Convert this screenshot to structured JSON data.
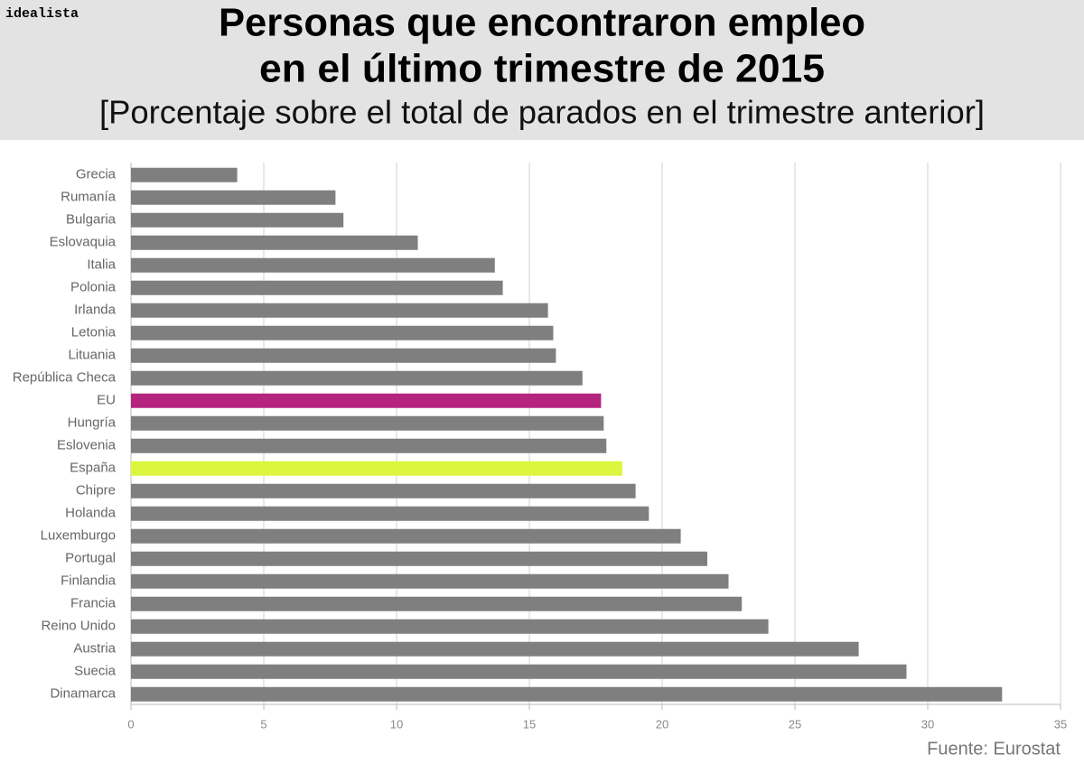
{
  "chart_data": {
    "type": "bar",
    "orientation": "horizontal",
    "logo": "idealista",
    "title": [
      "Personas que encontraron empleo",
      "en el último trimestre de 2015"
    ],
    "subtitle": "[Porcentaje sobre el total de parados en el trimestre anterior]",
    "source": "Fuente: Eurostat",
    "categories": [
      "Grecia",
      "Rumanía",
      "Bulgaria",
      "Eslovaquia",
      "Italia",
      "Polonia",
      "Irlanda",
      "Letonia",
      "Lituania",
      "República Checa",
      "EU",
      "Hungría",
      "Eslovenia",
      "España",
      "Chipre",
      "Holanda",
      "Luxemburgo",
      "Portugal",
      "Finlandia",
      "Francia",
      "Reino Unido",
      "Austria",
      "Suecia",
      "Dinamarca"
    ],
    "values": [
      4.0,
      7.7,
      8.0,
      10.8,
      13.7,
      14.0,
      15.7,
      15.9,
      16.0,
      17.0,
      17.7,
      17.8,
      17.9,
      18.5,
      19.0,
      19.5,
      20.7,
      21.7,
      22.5,
      23.0,
      24.0,
      27.4,
      29.2,
      32.8
    ],
    "colors": [
      "#7f7f7f",
      "#7f7f7f",
      "#7f7f7f",
      "#7f7f7f",
      "#7f7f7f",
      "#7f7f7f",
      "#7f7f7f",
      "#7f7f7f",
      "#7f7f7f",
      "#7f7f7f",
      "#b5247e",
      "#7f7f7f",
      "#7f7f7f",
      "#dcf53f",
      "#7f7f7f",
      "#7f7f7f",
      "#7f7f7f",
      "#7f7f7f",
      "#7f7f7f",
      "#7f7f7f",
      "#7f7f7f",
      "#7f7f7f",
      "#7f7f7f",
      "#7f7f7f"
    ],
    "xlim": [
      0,
      35
    ],
    "xticks": [
      0,
      5,
      10,
      15,
      20,
      25,
      30,
      35
    ],
    "grid": true
  }
}
